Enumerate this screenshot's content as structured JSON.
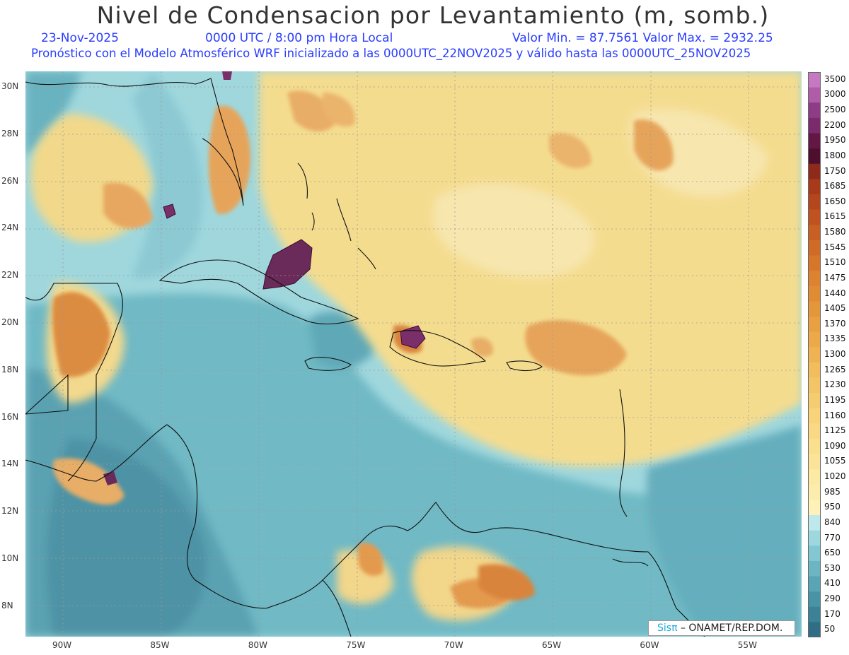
{
  "title": "Nivel de Condensacion por Levantamiento (m, somb.)",
  "date": "23-Nov-2025",
  "time": "0000 UTC / 8:00 pm Hora Local",
  "minmax": "Valor Min. = 87.7561   Valor Max. = 2932.25",
  "forecast": "Pronóstico con el Modelo Atmosférico WRF inicializado a las 0000UTC_22NOV2025 y válido hasta las  0000UTC_25NOV2025",
  "credit": {
    "logo": "Sisπ",
    "text": " –  ONAMET/REP.DOM."
  },
  "lat_labels": [
    "30N",
    "28N",
    "26N",
    "24N",
    "22N",
    "20N",
    "18N",
    "16N",
    "14N",
    "12N",
    "10N",
    "8N"
  ],
  "lon_labels": [
    "90W",
    "85W",
    "80W",
    "75W",
    "70W",
    "65W",
    "60W",
    "55W"
  ],
  "legend": {
    "labels": [
      "3500",
      "3000",
      "2500",
      "2200",
      "1950",
      "1800",
      "1750",
      "1685",
      "1650",
      "1615",
      "1580",
      "1545",
      "1510",
      "1475",
      "1440",
      "1405",
      "1370",
      "1335",
      "1300",
      "1265",
      "1230",
      "1195",
      "1160",
      "1125",
      "1090",
      "1055",
      "1020",
      "985",
      "950",
      "840",
      "770",
      "650",
      "530",
      "410",
      "290",
      "170",
      "50"
    ],
    "colors": [
      "#c679c3",
      "#b05ca9",
      "#8f3c87",
      "#7a2b6b",
      "#631745",
      "#4e0f2e",
      "#8e2a1a",
      "#a63a1a",
      "#b4461e",
      "#c05220",
      "#c85f23",
      "#d06b27",
      "#d6762b",
      "#dc8230",
      "#e08c35",
      "#e4963b",
      "#e8a042",
      "#eca94a",
      "#efb353",
      "#f2bd5c",
      "#f4c566",
      "#f6cc70",
      "#f8d37a",
      "#f9d985",
      "#fadf8f",
      "#fbe499",
      "#fce9a3",
      "#fdedad",
      "#fef2b8",
      "#bde8ec",
      "#9ed8df",
      "#82c7d1",
      "#6cb6c4",
      "#59a4b5",
      "#4993a6",
      "#3b8297",
      "#2f6e86"
    ]
  },
  "map": {
    "region": "Caribe",
    "lat_range": [
      6.5,
      30.6
    ],
    "lon_range": [
      -92.0,
      -52.5
    ],
    "field_colors": {
      "low": "#5aa6b4",
      "mid": "#a8dce0",
      "high": "#f3d88a",
      "very_high": "#e3a355",
      "max": "#7a2e6a"
    }
  }
}
